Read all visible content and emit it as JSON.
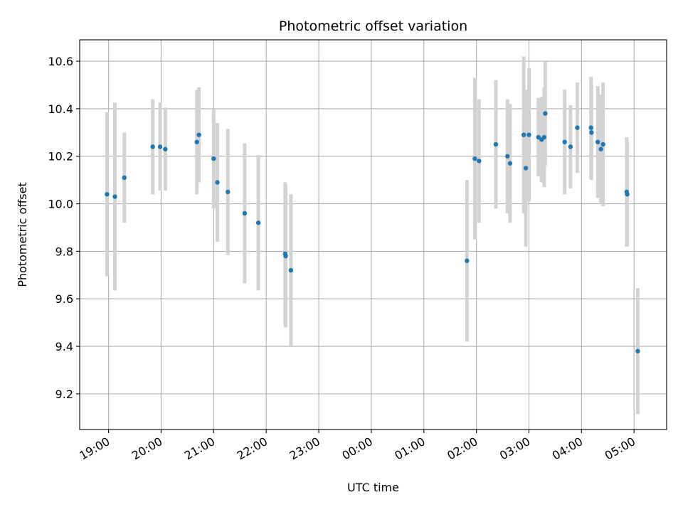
{
  "chart_data": {
    "type": "scatter",
    "title": "Photometric offset variation",
    "xlabel": "UTC time",
    "ylabel": "Photometric offset",
    "x_unit": "hour",
    "xlim": [
      18.45,
      29.62
    ],
    "ylim": [
      9.05,
      10.69
    ],
    "xticks": [
      {
        "value": 19,
        "label": "19:00"
      },
      {
        "value": 20,
        "label": "20:00"
      },
      {
        "value": 21,
        "label": "21:00"
      },
      {
        "value": 22,
        "label": "22:00"
      },
      {
        "value": 23,
        "label": "23:00"
      },
      {
        "value": 24,
        "label": "00:00"
      },
      {
        "value": 25,
        "label": "01:00"
      },
      {
        "value": 26,
        "label": "02:00"
      },
      {
        "value": 27,
        "label": "03:00"
      },
      {
        "value": 28,
        "label": "04:00"
      },
      {
        "value": 29,
        "label": "05:00"
      }
    ],
    "yticks": [
      {
        "value": 9.2,
        "label": "9.2"
      },
      {
        "value": 9.4,
        "label": "9.4"
      },
      {
        "value": 9.6,
        "label": "9.6"
      },
      {
        "value": 9.8,
        "label": "9.8"
      },
      {
        "value": 10.0,
        "label": "10.0"
      },
      {
        "value": 10.2,
        "label": "10.2"
      },
      {
        "value": 10.4,
        "label": "10.4"
      },
      {
        "value": 10.6,
        "label": "10.6"
      }
    ],
    "grid": true,
    "point_color": "#1f77b4",
    "errorbar_color": "#d3d3d3",
    "points": [
      {
        "x": 18.97,
        "y": 10.04,
        "err": 0.345
      },
      {
        "x": 19.12,
        "y": 10.03,
        "err": 0.395
      },
      {
        "x": 19.3,
        "y": 10.11,
        "err": 0.19
      },
      {
        "x": 19.84,
        "y": 10.24,
        "err": 0.2
      },
      {
        "x": 19.98,
        "y": 10.24,
        "err": 0.185
      },
      {
        "x": 20.08,
        "y": 10.23,
        "err": 0.175
      },
      {
        "x": 20.68,
        "y": 10.26,
        "err": 0.22
      },
      {
        "x": 20.72,
        "y": 10.29,
        "err": 0.2
      },
      {
        "x": 21.0,
        "y": 10.19,
        "err": 0.21
      },
      {
        "x": 21.07,
        "y": 10.09,
        "err": 0.25
      },
      {
        "x": 21.27,
        "y": 10.05,
        "err": 0.265
      },
      {
        "x": 21.59,
        "y": 9.96,
        "err": 0.295
      },
      {
        "x": 21.85,
        "y": 9.92,
        "err": 0.285
      },
      {
        "x": 22.36,
        "y": 9.79,
        "err": 0.3
      },
      {
        "x": 22.37,
        "y": 9.78,
        "err": 0.3
      },
      {
        "x": 22.47,
        "y": 9.72,
        "err": 0.32
      },
      {
        "x": 25.82,
        "y": 9.76,
        "err": 0.34
      },
      {
        "x": 25.97,
        "y": 10.19,
        "err": 0.34
      },
      {
        "x": 26.05,
        "y": 10.18,
        "err": 0.26
      },
      {
        "x": 26.37,
        "y": 10.25,
        "err": 0.27
      },
      {
        "x": 26.59,
        "y": 10.2,
        "err": 0.24
      },
      {
        "x": 26.64,
        "y": 10.17,
        "err": 0.25
      },
      {
        "x": 26.9,
        "y": 10.29,
        "err": 0.33
      },
      {
        "x": 26.94,
        "y": 10.15,
        "err": 0.33
      },
      {
        "x": 27.0,
        "y": 10.29,
        "err": 0.28
      },
      {
        "x": 27.18,
        "y": 10.28,
        "err": 0.165
      },
      {
        "x": 27.24,
        "y": 10.27,
        "err": 0.18
      },
      {
        "x": 27.29,
        "y": 10.28,
        "err": 0.21
      },
      {
        "x": 27.31,
        "y": 10.38,
        "err": 0.22
      },
      {
        "x": 27.68,
        "y": 10.26,
        "err": 0.22
      },
      {
        "x": 27.79,
        "y": 10.24,
        "err": 0.175
      },
      {
        "x": 27.92,
        "y": 10.32,
        "err": 0.19
      },
      {
        "x": 28.18,
        "y": 10.32,
        "err": 0.215
      },
      {
        "x": 28.19,
        "y": 10.3,
        "err": 0.2
      },
      {
        "x": 28.31,
        "y": 10.26,
        "err": 0.235
      },
      {
        "x": 28.37,
        "y": 10.23,
        "err": 0.23
      },
      {
        "x": 28.41,
        "y": 10.25,
        "err": 0.26
      },
      {
        "x": 28.86,
        "y": 10.05,
        "err": 0.23
      },
      {
        "x": 28.87,
        "y": 10.04,
        "err": 0.22
      },
      {
        "x": 29.07,
        "y": 9.38,
        "err": 0.265
      }
    ]
  }
}
